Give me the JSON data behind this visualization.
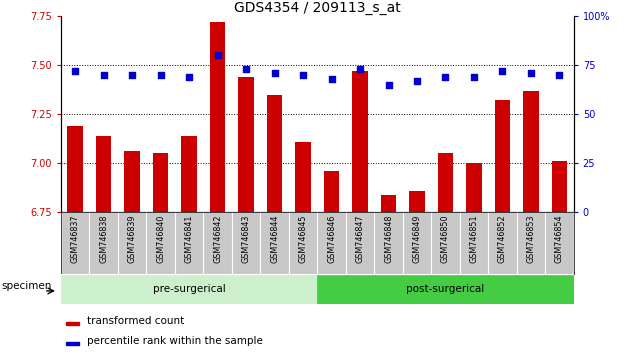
{
  "title": "GDS4354 / 209113_s_at",
  "samples": [
    "GSM746837",
    "GSM746838",
    "GSM746839",
    "GSM746840",
    "GSM746841",
    "GSM746842",
    "GSM746843",
    "GSM746844",
    "GSM746845",
    "GSM746846",
    "GSM746847",
    "GSM746848",
    "GSM746849",
    "GSM746850",
    "GSM746851",
    "GSM746852",
    "GSM746853",
    "GSM746854"
  ],
  "bar_values": [
    7.19,
    7.14,
    7.06,
    7.05,
    7.14,
    7.72,
    7.44,
    7.35,
    7.11,
    6.96,
    7.47,
    6.84,
    6.86,
    7.05,
    7.0,
    7.32,
    7.37,
    7.01
  ],
  "percentile_values": [
    72,
    70,
    70,
    70,
    69,
    80,
    73,
    71,
    70,
    68,
    73,
    65,
    67,
    69,
    69,
    72,
    71,
    70
  ],
  "bar_color": "#cc0000",
  "dot_color": "#0000cc",
  "ylim_left": [
    6.75,
    7.75
  ],
  "ylim_right": [
    0,
    100
  ],
  "yticks_left": [
    6.75,
    7.0,
    7.25,
    7.5,
    7.75
  ],
  "yticks_right": [
    0,
    25,
    50,
    75,
    100
  ],
  "ytick_labels_right": [
    "0",
    "25",
    "50",
    "75",
    "100%"
  ],
  "pre_surgical_count": 9,
  "post_surgical_count": 9,
  "pre_label": "pre-surgerical",
  "post_label": "post-surgerical",
  "pre_color": "#ccf0cc",
  "post_color": "#44cc44",
  "legend_items": [
    {
      "label": "transformed count",
      "color": "#cc0000"
    },
    {
      "label": "percentile rank within the sample",
      "color": "#0000cc"
    }
  ],
  "specimen_label": "specimen",
  "background_color": "#ffffff",
  "tick_area_color": "#c8c8c8",
  "title_fontsize": 10,
  "tick_fontsize": 7,
  "label_fontsize": 8
}
